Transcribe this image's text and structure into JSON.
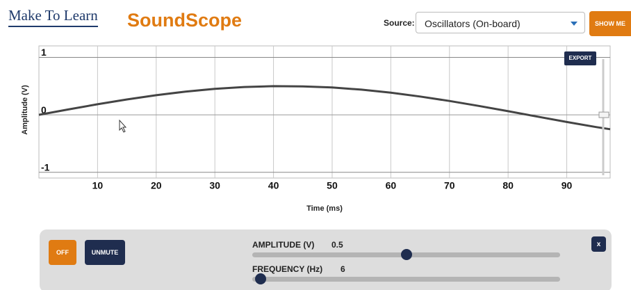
{
  "header": {
    "logo": "Make To Learn",
    "app_title": "SoundScope",
    "source_label": "Source:",
    "source_value": "Oscillators (On-board)",
    "show_me": "SHOW ME"
  },
  "chart_data": {
    "type": "line",
    "x_label": "Time (ms)",
    "y_label": "Amplitude (V)",
    "export": "EXPORT",
    "x": [
      0,
      5,
      10,
      15,
      20,
      25,
      30,
      35,
      40,
      45,
      50,
      55,
      60,
      65,
      70,
      75,
      80,
      85,
      90,
      95,
      97.4
    ],
    "values": [
      0,
      0.094,
      0.184,
      0.268,
      0.342,
      0.405,
      0.453,
      0.484,
      0.499,
      0.496,
      0.476,
      0.438,
      0.385,
      0.319,
      0.241,
      0.155,
      0.063,
      -0.031,
      -0.124,
      -0.213,
      -0.25
    ],
    "color": "#444444",
    "xlim": [
      0,
      97.4
    ],
    "xticks": [
      10,
      20,
      30,
      40,
      50,
      60,
      70,
      80,
      90
    ],
    "ylim": [
      -1.1,
      1.2
    ],
    "yticks": [
      -1,
      0,
      1
    ],
    "grid": true
  },
  "controls": {
    "off": "OFF",
    "unmute": "UNMUTE",
    "amplitude_label": "AMPLITUDE (V)",
    "amplitude": 0.5,
    "frequency_label": "FREQUENCY (Hz)",
    "frequency": 6,
    "close": "x"
  }
}
